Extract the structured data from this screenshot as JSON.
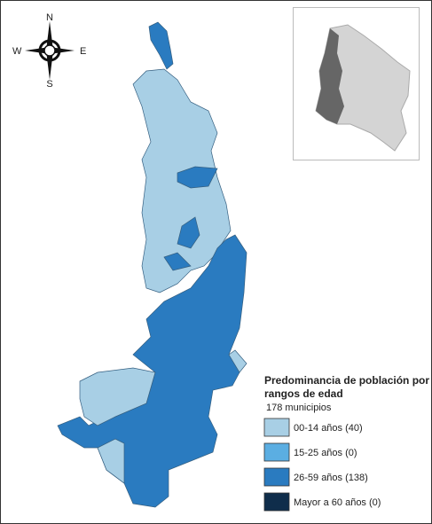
{
  "compass": {
    "north": "N",
    "south": "S",
    "east": "E",
    "west": "W"
  },
  "legend": {
    "title": "Predominancia de población por rangos de edad",
    "subtitle": "178 municipios",
    "items": [
      {
        "label": "00-14 años (40)",
        "color": "#a8cfe5"
      },
      {
        "label": "15-25 años (0)",
        "color": "#5baee2"
      },
      {
        "label": "26-59 años (138)",
        "color": "#2a7bc0"
      },
      {
        "label": "Mayor a 60 años (0)",
        "color": "#0f2d4b"
      }
    ]
  }
}
